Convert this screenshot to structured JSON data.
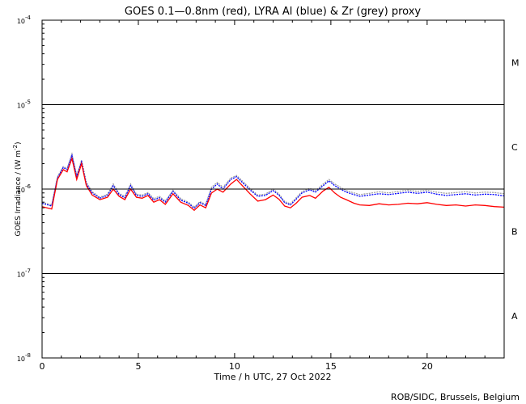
{
  "chart_data": {
    "type": "line",
    "title": "GOES 0.1—0.8nm (red), LYRA Al (blue) & Zr (grey) proxy",
    "xlabel": "Time / h UTC, 27 Oct 2022",
    "ylabel": "GOES Irradiance / (W m",
    "ylabel_unit_exp": "-2",
    "ylabel_close": ")",
    "credit": "ROB/SIDC, Brussels, Belgium",
    "x_range": [
      0,
      24
    ],
    "y_range": [
      1e-08,
      0.0001
    ],
    "y_scale": "log",
    "x_ticks": [
      {
        "value": 0,
        "label": "0"
      },
      {
        "value": 5,
        "label": "5"
      },
      {
        "value": 10,
        "label": "10"
      },
      {
        "value": 15,
        "label": "15"
      },
      {
        "value": 20,
        "label": "20"
      }
    ],
    "y_ticks": [
      {
        "exp": -8,
        "base": "10",
        "sup": "-8"
      },
      {
        "exp": -7,
        "base": "10",
        "sup": "-7"
      },
      {
        "exp": -6,
        "base": "10",
        "sup": "-6"
      },
      {
        "exp": -5,
        "base": "10",
        "sup": "-5"
      },
      {
        "exp": -4,
        "base": "10",
        "sup": "-4"
      }
    ],
    "flare_class_lines": [
      1e-07,
      1e-06,
      1e-05
    ],
    "flare_classes": [
      {
        "label": "A",
        "center_exp": -7.5
      },
      {
        "label": "B",
        "center_exp": -6.5
      },
      {
        "label": "C",
        "center_exp": -5.5
      },
      {
        "label": "M",
        "center_exp": -4.5
      }
    ],
    "series": [
      {
        "name": "GOES 0.1—0.8nm",
        "color": "#ff0000",
        "x": [
          0,
          0.5,
          0.8,
          1.1,
          1.3,
          1.55,
          1.8,
          2.05,
          2.3,
          2.6,
          3.0,
          3.4,
          3.7,
          4.0,
          4.3,
          4.6,
          4.9,
          5.2,
          5.5,
          5.8,
          6.1,
          6.4,
          6.8,
          7.2,
          7.6,
          7.9,
          8.2,
          8.5,
          8.8,
          9.1,
          9.4,
          9.8,
          10.1,
          10.4,
          10.8,
          11.2,
          11.6,
          12.0,
          12.3,
          12.6,
          12.9,
          13.2,
          13.5,
          13.9,
          14.2,
          14.6,
          14.9,
          15.2,
          15.5,
          15.8,
          16.2,
          16.5,
          17.0,
          17.5,
          18.0,
          18.5,
          19.0,
          19.5,
          20.0,
          20.5,
          21.0,
          21.5,
          22.0,
          22.5,
          23.0,
          23.5,
          24.0
        ],
        "y": [
          6.2e-07,
          5.8e-07,
          1.3e-06,
          1.7e-06,
          1.6e-06,
          2.3e-06,
          1.3e-06,
          2e-06,
          1.1e-06,
          8.5e-07,
          7.5e-07,
          8e-07,
          1e-06,
          8.2e-07,
          7.5e-07,
          1e-06,
          8e-07,
          7.8e-07,
          8.4e-07,
          7e-07,
          7.5e-07,
          6.6e-07,
          8.8e-07,
          7e-07,
          6.4e-07,
          5.6e-07,
          6.5e-07,
          6e-07,
          9e-07,
          1e-06,
          9.2e-07,
          1.15e-06,
          1.3e-06,
          1.1e-06,
          8.8e-07,
          7.2e-07,
          7.5e-07,
          8.5e-07,
          7.6e-07,
          6.3e-07,
          6e-07,
          6.8e-07,
          8e-07,
          8.4e-07,
          7.8e-07,
          9.5e-07,
          1.05e-06,
          9e-07,
          8e-07,
          7.5e-07,
          6.8e-07,
          6.5e-07,
          6.4e-07,
          6.7e-07,
          6.5e-07,
          6.6e-07,
          6.8e-07,
          6.7e-07,
          6.9e-07,
          6.6e-07,
          6.4e-07,
          6.5e-07,
          6.3e-07,
          6.5e-07,
          6.4e-07,
          6.2e-07,
          6.1e-07
        ]
      },
      {
        "name": "LYRA Al",
        "color": "#0000ff",
        "x": [
          0,
          0.5,
          0.8,
          1.1,
          1.3,
          1.55,
          1.8,
          2.05,
          2.3,
          2.6,
          3.0,
          3.4,
          3.7,
          4.0,
          4.3,
          4.6,
          4.9,
          5.2,
          5.5,
          5.8,
          6.1,
          6.4,
          6.8,
          7.2,
          7.6,
          7.9,
          8.2,
          8.5,
          8.8,
          9.1,
          9.4,
          9.8,
          10.1,
          10.4,
          10.8,
          11.2,
          11.6,
          12.0,
          12.3,
          12.6,
          12.9,
          13.2,
          13.5,
          13.9,
          14.2,
          14.6,
          14.9,
          15.2,
          15.5,
          15.8,
          16.2,
          16.5,
          17.0,
          17.5,
          18.0,
          18.5,
          19.0,
          19.5,
          20.0,
          20.5,
          21.0,
          21.5,
          22.0,
          22.5,
          23.0,
          23.5,
          24.0
        ],
        "y": [
          6.8e-07,
          6.3e-07,
          1.35e-06,
          1.8e-06,
          1.7e-06,
          2.5e-06,
          1.4e-06,
          2.1e-06,
          1.15e-06,
          9e-07,
          7.8e-07,
          8.4e-07,
          1.1e-06,
          8.6e-07,
          7.9e-07,
          1.1e-06,
          8.4e-07,
          8.2e-07,
          8.8e-07,
          7.4e-07,
          7.9e-07,
          7e-07,
          9.4e-07,
          7.4e-07,
          6.8e-07,
          5.9e-07,
          6.9e-07,
          6.4e-07,
          1e-06,
          1.15e-06,
          1e-06,
          1.3e-06,
          1.4e-06,
          1.2e-06,
          9.8e-07,
          8.2e-07,
          8.4e-07,
          9.6e-07,
          8.5e-07,
          6.9e-07,
          6.5e-07,
          7.6e-07,
          9e-07,
          9.8e-07,
          9.2e-07,
          1.1e-06,
          1.25e-06,
          1.1e-06,
          1e-06,
          9.2e-07,
          8.6e-07,
          8.2e-07,
          8.5e-07,
          8.8e-07,
          8.6e-07,
          8.9e-07,
          9.2e-07,
          8.9e-07,
          9.2e-07,
          8.7e-07,
          8.4e-07,
          8.6e-07,
          8.8e-07,
          8.5e-07,
          8.7e-07,
          8.6e-07,
          8.3e-07
        ]
      },
      {
        "name": "Zr",
        "color": "#a0a0a0",
        "x": [
          0,
          0.5,
          0.8,
          1.1,
          1.3,
          1.55,
          1.8,
          2.05,
          2.3,
          2.6,
          3.0,
          3.4,
          3.7,
          4.0,
          4.3,
          4.6,
          4.9,
          5.2,
          5.5,
          5.8,
          6.1,
          6.4,
          6.8,
          7.2,
          7.6,
          7.9,
          8.2,
          8.5,
          8.8,
          9.1,
          9.4,
          9.8,
          10.1,
          10.4,
          10.8,
          11.2,
          11.6,
          12.0,
          12.3,
          12.6,
          12.9,
          13.2,
          13.5,
          13.9,
          14.2,
          14.6,
          14.9,
          15.2,
          15.5,
          15.8,
          16.2,
          16.5,
          17.0,
          17.5,
          18.0,
          18.5,
          19.0,
          19.5,
          20.0,
          20.5,
          21.0,
          21.5,
          22.0,
          22.5,
          23.0,
          23.5,
          24.0
        ],
        "y": [
          7e-07,
          6.5e-07,
          1.4e-06,
          1.85e-06,
          1.75e-06,
          2.6e-06,
          1.45e-06,
          2.2e-06,
          1.2e-06,
          9.3e-07,
          8e-07,
          8.7e-07,
          1.15e-06,
          8.9e-07,
          8.2e-07,
          1.15e-06,
          8.7e-07,
          8.5e-07,
          9.1e-07,
          7.7e-07,
          8.2e-07,
          7.2e-07,
          9.7e-07,
          7.7e-07,
          7e-07,
          6.1e-07,
          7.1e-07,
          6.6e-07,
          1.05e-06,
          1.2e-06,
          1.05e-06,
          1.35e-06,
          1.45e-06,
          1.25e-06,
          1.02e-06,
          8.5e-07,
          8.7e-07,
          1e-06,
          8.8e-07,
          7.1e-07,
          6.7e-07,
          7.9e-07,
          9.3e-07,
          1.02e-06,
          9.5e-07,
          1.15e-06,
          1.3e-06,
          1.15e-06,
          1.05e-06,
          9.6e-07,
          9e-07,
          8.6e-07,
          8.9e-07,
          9.3e-07,
          9e-07,
          9.4e-07,
          9.7e-07,
          9.4e-07,
          9.7e-07,
          9.2e-07,
          8.9e-07,
          9.1e-07,
          9.3e-07,
          9e-07,
          9.2e-07,
          9.1e-07,
          8.8e-07
        ]
      }
    ]
  }
}
